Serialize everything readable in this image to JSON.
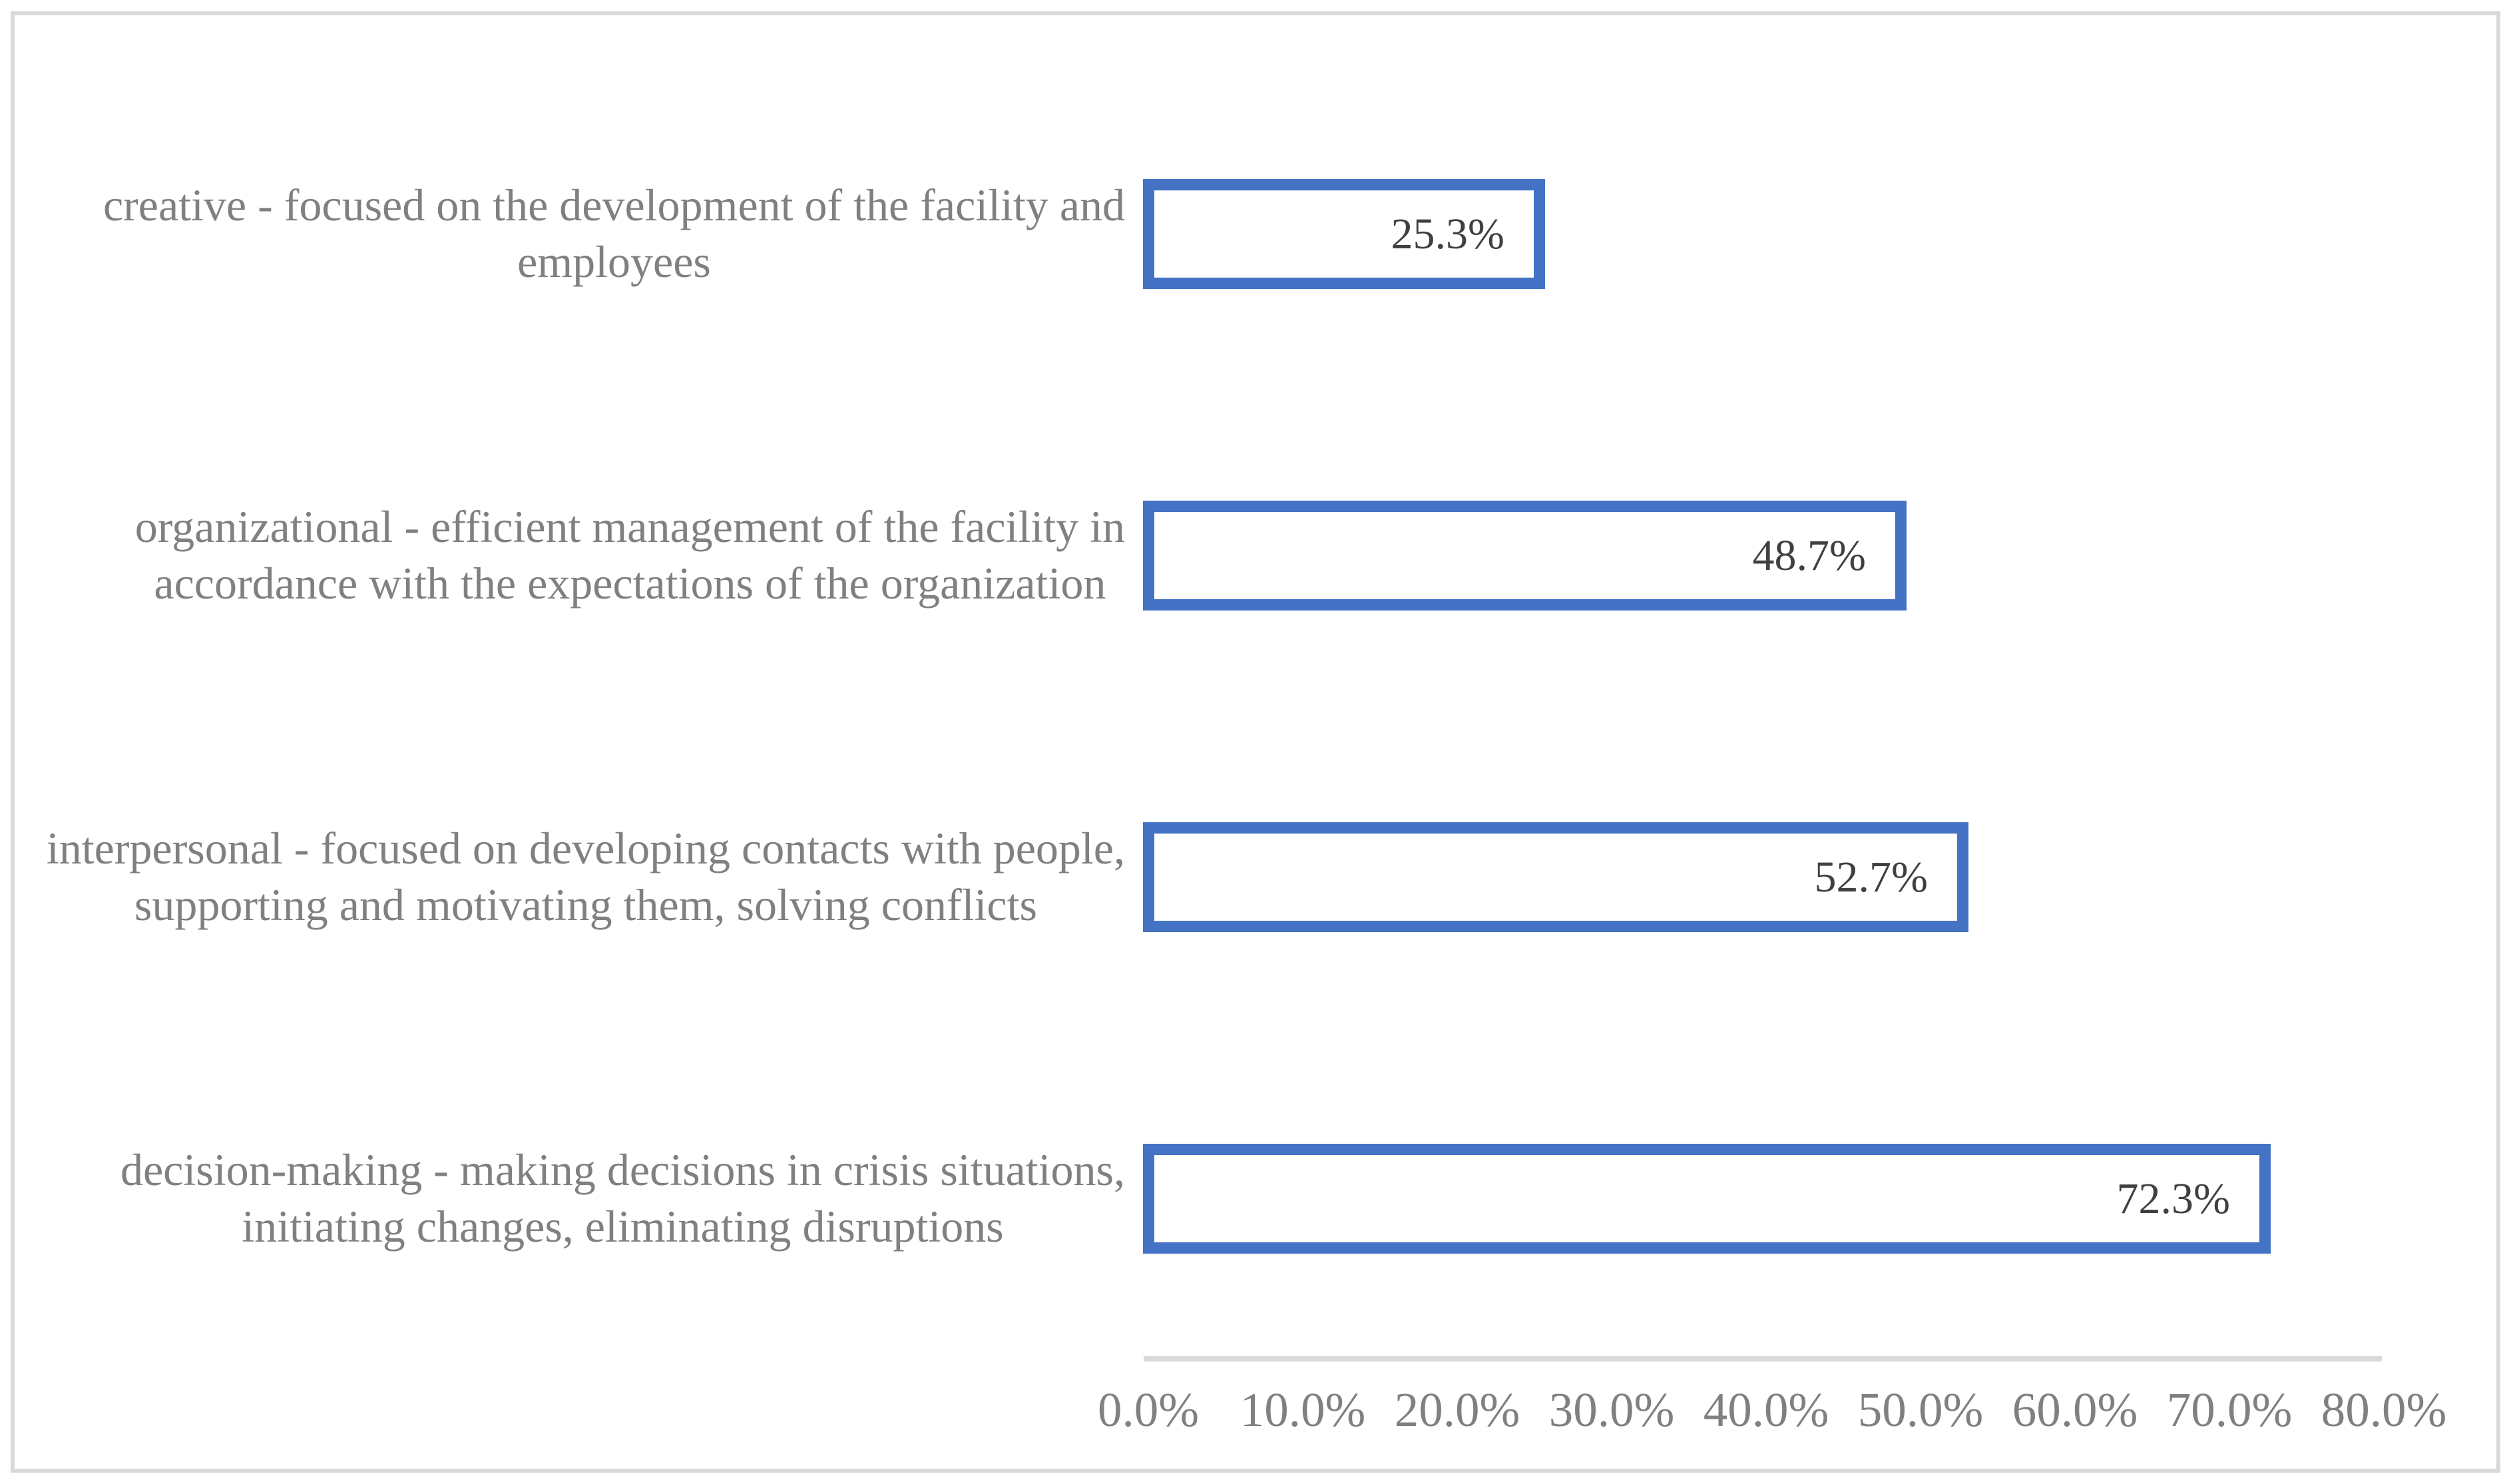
{
  "chart_data": {
    "type": "bar",
    "orientation": "horizontal",
    "title": "",
    "xlabel": "",
    "ylabel": "",
    "xlim": [
      0,
      80
    ],
    "grid": false,
    "legend": false,
    "categories": [
      "creative - focused on the development of the facility and\nemployees",
      "organizational - efficient management of the facility in\naccordance with the expectations of the organization",
      "interpersonal - focused on developing contacts with people,\nsupporting and motivating them, solving conflicts",
      "decision-making - making decisions in crisis situations,\ninitiating changes, eliminating disruptions"
    ],
    "values": [
      25.3,
      48.7,
      52.7,
      72.3
    ],
    "value_labels": [
      "25.3%",
      "48.7%",
      "52.7%",
      "72.3%"
    ],
    "x_ticks": [
      "0.0%",
      "10.0%",
      "20.0%",
      "30.0%",
      "40.0%",
      "50.0%",
      "60.0%",
      "70.0%",
      "80.0%"
    ],
    "colors": {
      "bar_border": "#4472C4",
      "bar_fill": "#FFFFFF",
      "value_text": "#404040",
      "category_text": "#808080",
      "tick_text": "#808080",
      "axis_line": "#D9D9D9",
      "frame_border": "#D9D9D9"
    }
  }
}
